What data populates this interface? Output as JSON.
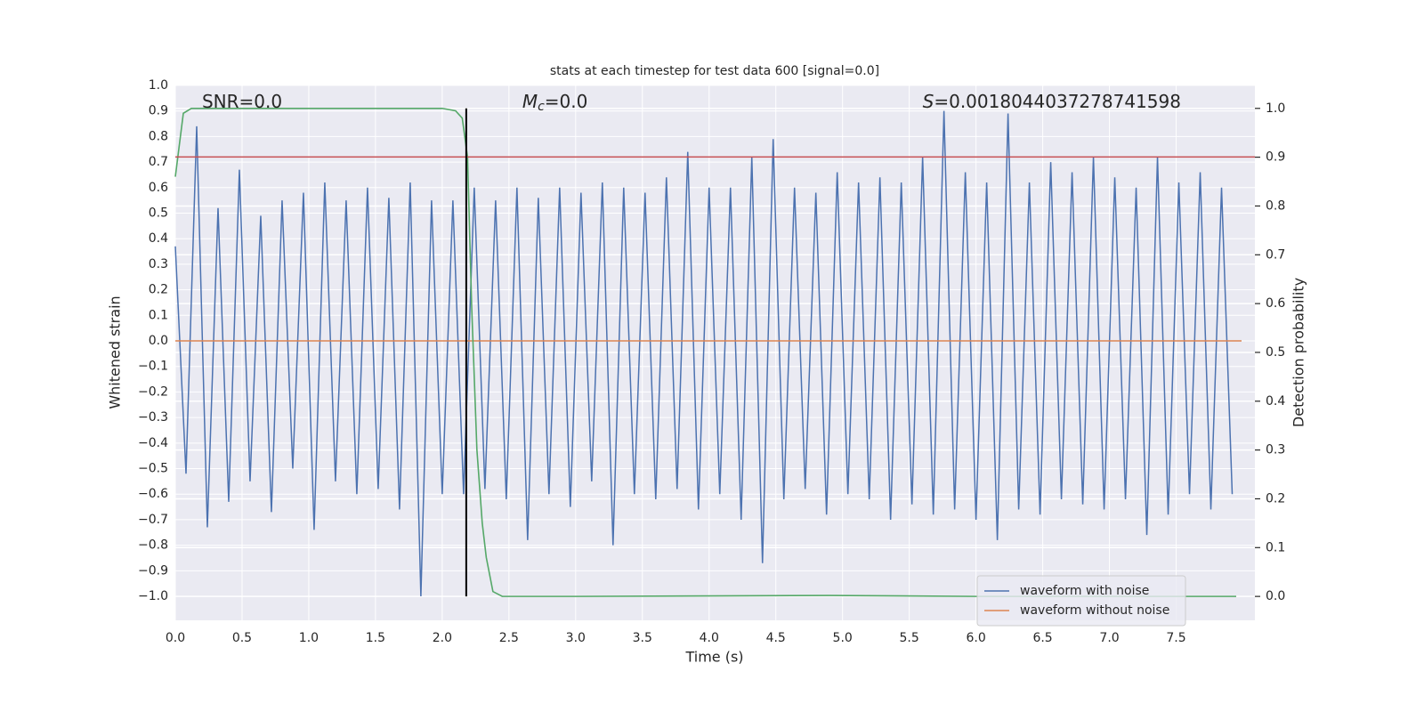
{
  "chart_data": {
    "type": "line",
    "title": "stats at each timestep for test data 600 [signal=0.0]",
    "xlabel": "Time (s)",
    "ylabel": "Whitened strain",
    "y2label": "Detection probability",
    "annotations": [
      {
        "parts": [
          "SNR=0.0"
        ],
        "x": 0.2
      },
      {
        "parts": [
          "M",
          "c",
          "=0.0"
        ],
        "x": 2.6
      },
      {
        "parts": [
          "S",
          "=0.0018044037278741598"
        ],
        "x": 5.6
      }
    ],
    "xlim": [
      0,
      8.09
    ],
    "ylim": [
      -1.094,
      1.0
    ],
    "y2lim": [
      -0.049,
      1.047
    ],
    "grid": true,
    "legend": "lower right",
    "xticks": [
      {
        "value": 0,
        "label": "0.0"
      },
      {
        "value": 0.5,
        "label": "0.5"
      },
      {
        "value": 1,
        "label": "1.0"
      },
      {
        "value": 1.5,
        "label": "1.5"
      },
      {
        "value": 2,
        "label": "2.0"
      },
      {
        "value": 2.5,
        "label": "2.5"
      },
      {
        "value": 3,
        "label": "3.0"
      },
      {
        "value": 3.5,
        "label": "3.5"
      },
      {
        "value": 4,
        "label": "4.0"
      },
      {
        "value": 4.5,
        "label": "4.5"
      },
      {
        "value": 5,
        "label": "5.0"
      },
      {
        "value": 5.5,
        "label": "5.5"
      },
      {
        "value": 6,
        "label": "6.0"
      },
      {
        "value": 6.5,
        "label": "6.5"
      },
      {
        "value": 7,
        "label": "7.0"
      },
      {
        "value": 7.5,
        "label": "7.5"
      }
    ],
    "yticks": [
      {
        "value": -1,
        "label": "−1.0"
      },
      {
        "value": -0.9,
        "label": "−0.9"
      },
      {
        "value": -0.8,
        "label": "−0.8"
      },
      {
        "value": -0.7,
        "label": "−0.7"
      },
      {
        "value": -0.6,
        "label": "−0.6"
      },
      {
        "value": -0.5,
        "label": "−0.5"
      },
      {
        "value": -0.4,
        "label": "−0.4"
      },
      {
        "value": -0.3,
        "label": "−0.3"
      },
      {
        "value": -0.2,
        "label": "−0.2"
      },
      {
        "value": -0.1,
        "label": "−0.1"
      },
      {
        "value": 0,
        "label": "0.0"
      },
      {
        "value": 0.1,
        "label": "0.1"
      },
      {
        "value": 0.2,
        "label": "0.2"
      },
      {
        "value": 0.3,
        "label": "0.3"
      },
      {
        "value": 0.4,
        "label": "0.4"
      },
      {
        "value": 0.5,
        "label": "0.5"
      },
      {
        "value": 0.6,
        "label": "0.6"
      },
      {
        "value": 0.7,
        "label": "0.7"
      },
      {
        "value": 0.8,
        "label": "0.8"
      },
      {
        "value": 0.9,
        "label": "0.9"
      },
      {
        "value": 1,
        "label": "1.0"
      }
    ],
    "y2ticks": [
      {
        "value": 0,
        "label": "0.0"
      },
      {
        "value": 0.1,
        "label": "0.1"
      },
      {
        "value": 0.2,
        "label": "0.2"
      },
      {
        "value": 0.3,
        "label": "0.3"
      },
      {
        "value": 0.4,
        "label": "0.4"
      },
      {
        "value": 0.5,
        "label": "0.5"
      },
      {
        "value": 0.6,
        "label": "0.6"
      },
      {
        "value": 0.7,
        "label": "0.7"
      },
      {
        "value": 0.8,
        "label": "0.8"
      },
      {
        "value": 0.9,
        "label": "0.9"
      },
      {
        "value": 1,
        "label": "1.0"
      }
    ],
    "series": [
      {
        "name": "waveform with noise",
        "color": "#4c72b0",
        "x": [
          0,
          0.08,
          0.16,
          0.24,
          0.32,
          0.4,
          0.48,
          0.56,
          0.64,
          0.72,
          0.8,
          0.88,
          0.96,
          1.04,
          1.12,
          1.2,
          1.28,
          1.36,
          1.44,
          1.52,
          1.6,
          1.68,
          1.76,
          1.84,
          1.92,
          2,
          2.08,
          2.16,
          2.24,
          2.32,
          2.4,
          2.48,
          2.56,
          2.64,
          2.72,
          2.8,
          2.88,
          2.96,
          3.04,
          3.12,
          3.2,
          3.28,
          3.36,
          3.44,
          3.52,
          3.6,
          3.68,
          3.76,
          3.84,
          3.92,
          4,
          4.08,
          4.16,
          4.24,
          4.32,
          4.4,
          4.48,
          4.56,
          4.64,
          4.72,
          4.8,
          4.88,
          4.96,
          5.04,
          5.12,
          5.2,
          5.28,
          5.36,
          5.44,
          5.52,
          5.6,
          5.68,
          5.76,
          5.84,
          5.92,
          6,
          6.08,
          6.16,
          6.24,
          6.32,
          6.4,
          6.48,
          6.56,
          6.64,
          6.72,
          6.8,
          6.88,
          6.96,
          7.04,
          7.12,
          7.2,
          7.28,
          7.36,
          7.44,
          7.52,
          7.6,
          7.68,
          7.76,
          7.84,
          7.92
        ],
        "values": [
          0.37,
          -0.52,
          0.84,
          -0.73,
          0.52,
          -0.63,
          0.67,
          -0.55,
          0.49,
          -0.67,
          0.55,
          -0.5,
          0.58,
          -0.74,
          0.62,
          -0.55,
          0.55,
          -0.6,
          0.6,
          -0.58,
          0.56,
          -0.66,
          0.62,
          -1.0,
          0.55,
          -0.6,
          0.55,
          -0.6,
          0.6,
          -0.58,
          0.55,
          -0.62,
          0.6,
          -0.78,
          0.56,
          -0.6,
          0.6,
          -0.65,
          0.58,
          -0.55,
          0.62,
          -0.8,
          0.6,
          -0.6,
          0.58,
          -0.62,
          0.64,
          -0.58,
          0.74,
          -0.66,
          0.6,
          -0.6,
          0.6,
          -0.7,
          0.72,
          -0.87,
          0.79,
          -0.62,
          0.6,
          -0.58,
          0.58,
          -0.68,
          0.66,
          -0.6,
          0.62,
          -0.62,
          0.64,
          -0.7,
          0.62,
          -0.64,
          0.72,
          -0.68,
          0.9,
          -0.66,
          0.66,
          -0.7,
          0.62,
          -0.78,
          0.89,
          -0.66,
          0.62,
          -0.68,
          0.7,
          -0.62,
          0.66,
          -0.64,
          0.72,
          -0.66,
          0.64,
          -0.62,
          0.6,
          -0.76,
          0.72,
          -0.68,
          0.62,
          -0.6,
          0.66,
          -0.66,
          0.6,
          -0.6
        ]
      },
      {
        "name": "waveform without noise",
        "color": "#dd8452",
        "x": [
          0,
          7.99
        ],
        "values": [
          0,
          0
        ]
      },
      {
        "color": "#55a868",
        "axis": "y2",
        "x": [
          0,
          0.06,
          0.12,
          0.3,
          1,
          2,
          2.1,
          2.15,
          2.19,
          2.22,
          2.26,
          2.3,
          2.33,
          2.38,
          2.45,
          3,
          4,
          4.9,
          6,
          7.95
        ],
        "values": [
          0.86,
          0.99,
          1.0,
          1.0,
          1.0,
          1.0,
          0.995,
          0.98,
          0.9,
          0.6,
          0.3,
          0.15,
          0.08,
          0.01,
          0.0,
          0.0,
          0.001,
          0.002,
          0.0,
          0.0
        ]
      }
    ],
    "hlines": [
      {
        "y": 0.72,
        "color": "#c44e52"
      }
    ],
    "vlines": [
      {
        "x": 2.18,
        "y2min": 0,
        "y2max": 1,
        "color": "#000000"
      }
    ]
  }
}
